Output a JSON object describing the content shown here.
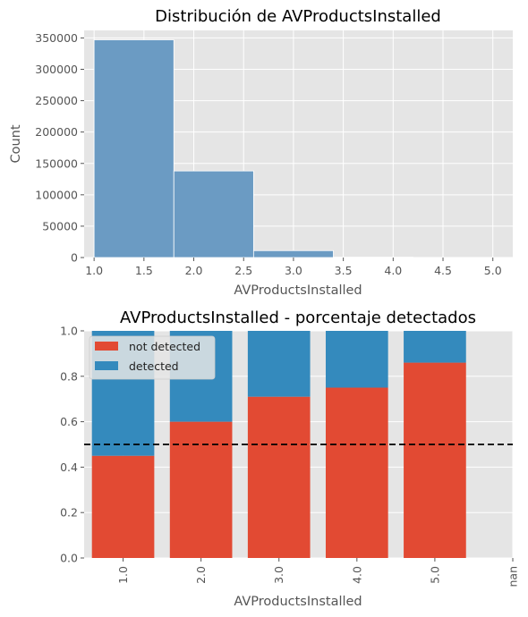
{
  "chart_data": [
    {
      "type": "bar",
      "title": "Distribución de AVProductsInstalled",
      "xlabel": "AVProductsInstalled",
      "ylabel": "Count",
      "xlim": [
        0.9,
        5.2
      ],
      "ylim": [
        0,
        362000
      ],
      "grid": true,
      "xticks": [
        "1.0",
        "1.5",
        "2.0",
        "2.5",
        "3.0",
        "3.5",
        "4.0",
        "4.5",
        "5.0"
      ],
      "yticks": [
        "0",
        "50000",
        "100000",
        "150000",
        "200000",
        "250000",
        "300000",
        "350000"
      ],
      "bins": [
        {
          "x0": 1.0,
          "x1": 1.8,
          "value": 347000
        },
        {
          "x0": 1.8,
          "x1": 2.6,
          "value": 138000
        },
        {
          "x0": 2.6,
          "x1": 3.4,
          "value": 11000
        },
        {
          "x0": 3.4,
          "x1": 4.2,
          "value": 600
        },
        {
          "x0": 4.2,
          "x1": 5.0,
          "value": 60
        }
      ],
      "colors": {
        "bar": "#6b9bc3"
      }
    },
    {
      "type": "bar",
      "stacked": true,
      "title": "AVProductsInstalled - porcentaje detectados",
      "xlabel": "AVProductsInstalled",
      "categories": [
        "1.0",
        "2.0",
        "3.0",
        "4.0",
        "5.0",
        "nan"
      ],
      "series": [
        {
          "name": "not detected",
          "values": [
            0.45,
            0.6,
            0.71,
            0.75,
            0.86,
            null
          ],
          "color": "#e24a33"
        },
        {
          "name": "detected",
          "values": [
            0.55,
            0.4,
            0.29,
            0.25,
            0.14,
            null
          ],
          "color": "#348abd"
        }
      ],
      "ylim": [
        0,
        1.0
      ],
      "yticks": [
        "0.0",
        "0.2",
        "0.4",
        "0.6",
        "0.8",
        "1.0"
      ],
      "reference_line": {
        "y": 0.5,
        "style": "dashed"
      },
      "legend": "top-left",
      "grid": true
    }
  ]
}
